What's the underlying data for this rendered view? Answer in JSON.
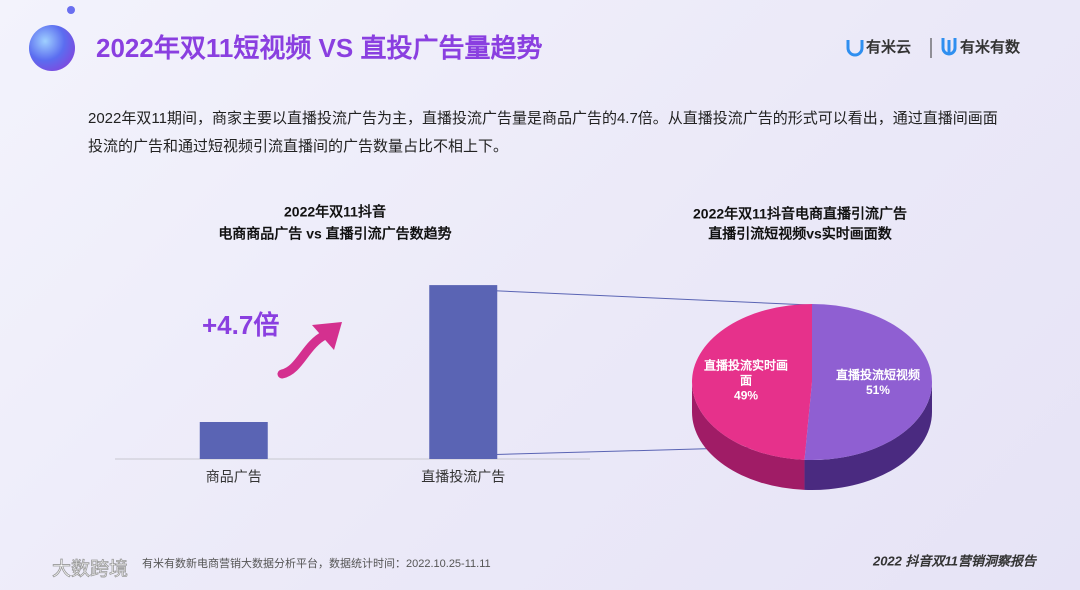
{
  "header": {
    "title": "2022年双11短视频 VS 直投广告量趋势",
    "logo_left": "有米云",
    "logo_right": "有米有数"
  },
  "description": "2022年双11期间，商家主要以直播投流广告为主，直播投流广告量是商品广告的4.7倍。从直播投流广告的形式可以看出，通过直播间画面投流的广告和通过短视频引流直播间的广告数量占比不相上下。",
  "chart_data": [
    {
      "type": "bar",
      "title": [
        "2022年双11抖音",
        "电商商品广告 vs 直播引流广告数趋势"
      ],
      "categories": [
        "商品广告",
        "直播投流广告"
      ],
      "values": [
        1,
        4.7
      ],
      "color": "#5a64b4",
      "ylim": [
        0,
        5
      ],
      "annotation": "+4.7倍"
    },
    {
      "type": "pie",
      "title": [
        "2022年双11抖音电商直播引流广告",
        "直播引流短视频vs实时画面数"
      ],
      "categories": [
        "直播投流短视频",
        "直播投流实时画面"
      ],
      "values": [
        51,
        49
      ],
      "value_labels": [
        "51%",
        "49%"
      ],
      "colors": [
        "#8f5fd2",
        "#e6318b"
      ],
      "side_colors": [
        "#4a2a80",
        "#a01c66"
      ]
    }
  ],
  "footer": {
    "source": "有米有数新电商营销大数据分析平台，数据统计时间：2022.10.25-11.11",
    "report": "2022 抖音双11营销洞察报告",
    "watermark": "大数跨境"
  }
}
